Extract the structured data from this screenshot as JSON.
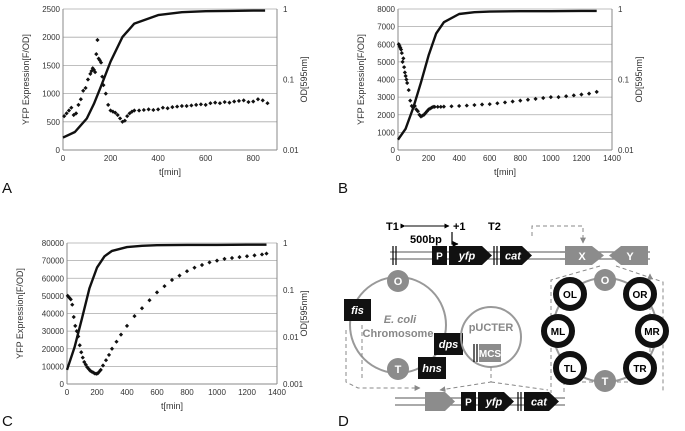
{
  "panel_labels": [
    "A",
    "B",
    "C",
    "D"
  ],
  "chart_data": [
    {
      "type": "scatter",
      "panel": "A",
      "xlabel": "t[min]",
      "ylabel": "YFP Expression[F/OD]",
      "y2label": "OD[595nm]",
      "xlim": [
        0,
        900
      ],
      "xticks": [
        0,
        200,
        400,
        600,
        800
      ],
      "ylim": [
        0,
        2500
      ],
      "yticks": [
        0,
        500,
        1000,
        1500,
        2000,
        2500
      ],
      "y2lim": [
        0.01,
        1
      ],
      "y2ticks": [
        0.01,
        0.1,
        1
      ],
      "grid": true,
      "series": [
        {
          "name": "YFP expression",
          "axis": "left",
          "style": "diamond-markers",
          "x": [
            5,
            15,
            25,
            35,
            45,
            55,
            65,
            75,
            85,
            95,
            105,
            115,
            120,
            125,
            130,
            135,
            140,
            145,
            150,
            155,
            160,
            165,
            170,
            180,
            190,
            200,
            210,
            220,
            230,
            240,
            250,
            260,
            270,
            280,
            290,
            300,
            320,
            340,
            360,
            380,
            400,
            420,
            440,
            460,
            480,
            500,
            520,
            540,
            560,
            580,
            600,
            620,
            640,
            660,
            680,
            700,
            720,
            740,
            760,
            780,
            800,
            820,
            840,
            860
          ],
          "y": [
            600,
            650,
            700,
            750,
            620,
            650,
            800,
            900,
            1050,
            1100,
            1250,
            1350,
            1400,
            1450,
            1420,
            1380,
            1700,
            1950,
            1620,
            1590,
            1550,
            1300,
            1150,
            1000,
            800,
            700,
            680,
            660,
            620,
            560,
            500,
            520,
            600,
            650,
            680,
            700,
            700,
            710,
            720,
            710,
            720,
            750,
            740,
            760,
            770,
            780,
            780,
            790,
            800,
            810,
            800,
            830,
            840,
            830,
            850,
            840,
            860,
            870,
            880,
            850,
            860,
            900,
            880,
            830
          ]
        },
        {
          "name": "OD",
          "axis": "right",
          "style": "line",
          "x": [
            0,
            50,
            100,
            130,
            160,
            200,
            250,
            300,
            400,
            500,
            600,
            700,
            800,
            850
          ],
          "y": [
            0.015,
            0.018,
            0.028,
            0.045,
            0.08,
            0.18,
            0.4,
            0.62,
            0.82,
            0.9,
            0.93,
            0.94,
            0.95,
            0.95
          ]
        }
      ]
    },
    {
      "type": "scatter",
      "panel": "B",
      "xlabel": "t[min]",
      "ylabel": "YFP Expression[F/OD]",
      "y2label": "OD[595nm]",
      "xlim": [
        0,
        1400
      ],
      "xticks": [
        0,
        200,
        400,
        600,
        800,
        1000,
        1200,
        1400
      ],
      "ylim": [
        0,
        8000
      ],
      "yticks": [
        0,
        1000,
        2000,
        3000,
        4000,
        5000,
        6000,
        7000,
        8000
      ],
      "y2lim": [
        0.01,
        1
      ],
      "y2ticks": [
        0.01,
        0.1,
        1
      ],
      "grid": true,
      "series": [
        {
          "name": "YFP expression",
          "axis": "left",
          "style": "diamond-markers",
          "x": [
            5,
            10,
            15,
            20,
            25,
            30,
            35,
            40,
            45,
            50,
            55,
            60,
            70,
            80,
            90,
            100,
            110,
            120,
            130,
            140,
            150,
            160,
            170,
            180,
            190,
            200,
            210,
            220,
            230,
            240,
            260,
            280,
            300,
            350,
            400,
            450,
            500,
            550,
            600,
            650,
            700,
            750,
            800,
            850,
            900,
            950,
            1000,
            1050,
            1100,
            1150,
            1200,
            1250,
            1300
          ],
          "y": [
            6000,
            5900,
            5800,
            5700,
            5500,
            5000,
            5200,
            4700,
            4400,
            4200,
            4000,
            3800,
            3400,
            2800,
            2500,
            2400,
            2500,
            2300,
            2200,
            2000,
            1900,
            1950,
            2000,
            2100,
            2200,
            2300,
            2350,
            2400,
            2450,
            2450,
            2450,
            2450,
            2460,
            2480,
            2500,
            2520,
            2550,
            2580,
            2600,
            2650,
            2700,
            2750,
            2800,
            2850,
            2900,
            2950,
            3000,
            3000,
            3050,
            3100,
            3150,
            3200,
            3300
          ]
        },
        {
          "name": "OD",
          "axis": "right",
          "style": "line",
          "x": [
            0,
            50,
            100,
            150,
            200,
            250,
            300,
            400,
            500,
            600,
            800,
            1000,
            1200,
            1300
          ],
          "y": [
            0.014,
            0.02,
            0.04,
            0.09,
            0.22,
            0.45,
            0.65,
            0.85,
            0.9,
            0.92,
            0.93,
            0.93,
            0.94,
            0.94
          ]
        }
      ]
    },
    {
      "type": "scatter",
      "panel": "C",
      "xlabel": "t[min]",
      "ylabel": "YFP Expression[F/OD]",
      "y2label": "OD[595nm]",
      "xlim": [
        0,
        1400
      ],
      "xticks": [
        0,
        200,
        400,
        600,
        800,
        1000,
        1200,
        1400
      ],
      "ylim": [
        0,
        80000
      ],
      "yticks": [
        0,
        10000,
        20000,
        30000,
        40000,
        50000,
        60000,
        70000,
        80000
      ],
      "y2lim": [
        0.001,
        1
      ],
      "y2ticks": [
        0.001,
        0.01,
        0.1,
        1
      ],
      "grid": true,
      "series": [
        {
          "name": "YFP expression",
          "axis": "left",
          "style": "diamond-markers",
          "x": [
            5,
            15,
            25,
            35,
            45,
            55,
            65,
            75,
            85,
            95,
            105,
            115,
            125,
            135,
            145,
            155,
            165,
            175,
            185,
            195,
            205,
            215,
            225,
            240,
            260,
            280,
            300,
            330,
            360,
            400,
            450,
            500,
            550,
            600,
            650,
            700,
            750,
            800,
            850,
            900,
            950,
            1000,
            1050,
            1100,
            1150,
            1200,
            1250,
            1300,
            1330
          ],
          "y": [
            50000,
            49000,
            48000,
            45000,
            38000,
            33000,
            30000,
            27000,
            22000,
            18000,
            15000,
            12500,
            11000,
            9500,
            8500,
            7500,
            7000,
            6500,
            6000,
            5800,
            6000,
            7000,
            8000,
            10500,
            13500,
            16500,
            20000,
            24000,
            28000,
            33000,
            38500,
            43000,
            47500,
            52000,
            55500,
            59000,
            61500,
            64000,
            66000,
            67500,
            69000,
            70000,
            71000,
            71500,
            72000,
            72500,
            73000,
            73500,
            74000
          ]
        },
        {
          "name": "OD",
          "axis": "right",
          "style": "line",
          "x": [
            0,
            50,
            100,
            150,
            200,
            250,
            300,
            400,
            500,
            600,
            800,
            1000,
            1200,
            1330
          ],
          "y": [
            0.002,
            0.006,
            0.025,
            0.11,
            0.3,
            0.52,
            0.68,
            0.82,
            0.87,
            0.9,
            0.91,
            0.91,
            0.92,
            0.92
          ]
        }
      ]
    }
  ],
  "diagram": {
    "t1": "T1",
    "t2": "T2",
    "plus_one": "+1",
    "bp_label": "500bp",
    "p": "P",
    "yfp": "yfp",
    "cat": "cat",
    "x": "X",
    "y": "Y",
    "o": "O",
    "t": "T",
    "fis": "fis",
    "dps": "dps",
    "hns": "hns",
    "ecoli": "E. coli",
    "chromosome": "Chromosome",
    "pucter": "pUCTER",
    "mcs": "MCS",
    "ol": "OL",
    "or": "OR",
    "ml": "ML",
    "mr": "MR",
    "tl": "TL",
    "tr": "TR"
  }
}
